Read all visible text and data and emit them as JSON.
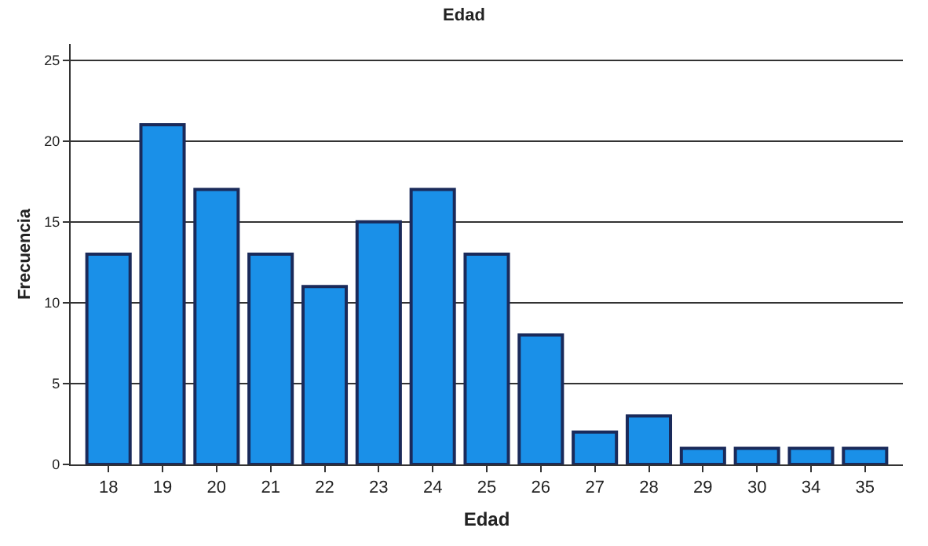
{
  "chart_data": {
    "type": "bar",
    "title": "Edad",
    "xlabel": "Edad",
    "ylabel": "Frecuencia",
    "categories": [
      "18",
      "19",
      "20",
      "21",
      "22",
      "23",
      "24",
      "25",
      "26",
      "27",
      "28",
      "29",
      "30",
      "34",
      "35"
    ],
    "values": [
      13,
      21,
      17,
      13,
      11,
      15,
      17,
      13,
      8,
      2,
      3,
      1,
      1,
      1,
      1
    ],
    "color": "#1a90e8",
    "ylim": [
      0,
      26
    ],
    "yticks": [
      0,
      5,
      10,
      15,
      20,
      25
    ],
    "grid": "y"
  }
}
